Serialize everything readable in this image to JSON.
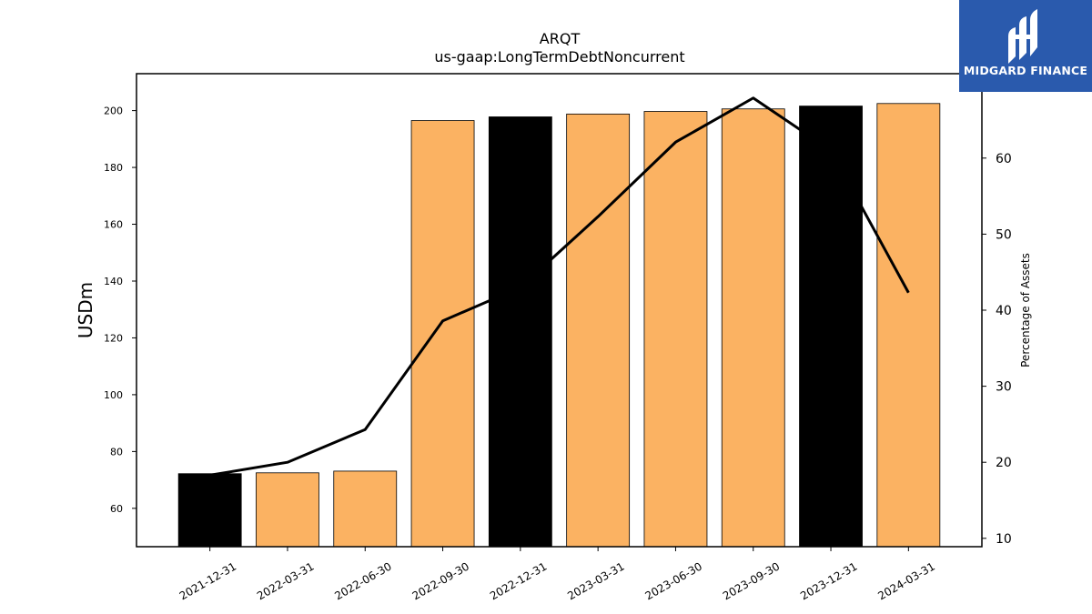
{
  "logo": {
    "text": "MIDGARD FINANCE",
    "color": "#2a5aad"
  },
  "chart_data": {
    "type": "bar",
    "title": "ARQT",
    "subtitle": "us-gaap:LongTermDebtNoncurrent",
    "ylabel": "USDm",
    "y2label": "Percentage of Assets",
    "categories": [
      "2021-12-31",
      "2022-03-31",
      "2022-06-30",
      "2022-09-30",
      "2022-12-31",
      "2023-03-31",
      "2023-06-30",
      "2023-09-30",
      "2023-12-31",
      "2024-03-31"
    ],
    "values": [
      72.2,
      72.5,
      73.1,
      196.5,
      197.8,
      198.8,
      199.7,
      200.6,
      201.6,
      202.5
    ],
    "bar_colors": [
      "#000000",
      "#fbb262",
      "#fbb262",
      "#fbb262",
      "#000000",
      "#fbb262",
      "#fbb262",
      "#fbb262",
      "#000000",
      "#fbb262"
    ],
    "line_values": [
      18.3,
      20.0,
      24.3,
      38.6,
      43.0,
      52.3,
      62.1,
      67.9,
      61.0,
      42.3
    ],
    "line_color": "#000000",
    "ylim": [
      46.5,
      213
    ],
    "y2lim": [
      8.9,
      71.1
    ],
    "yticks": [
      60,
      80,
      100,
      120,
      140,
      160,
      180,
      200
    ],
    "y2ticks": [
      10,
      20,
      30,
      40,
      50,
      60
    ],
    "grid": false,
    "legend": "none"
  }
}
